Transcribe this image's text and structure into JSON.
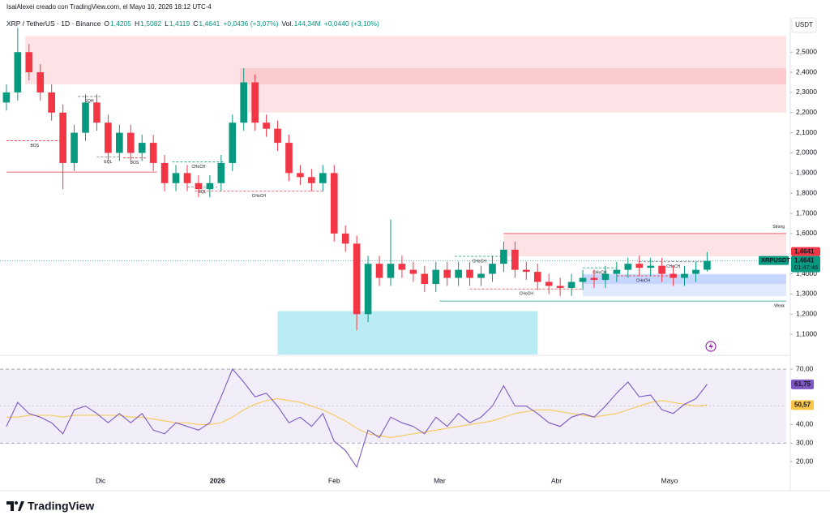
{
  "header": {
    "credit": "IsaiAlexei creado con TradingView.com, el Mayo 10, 2026 18:12 UTC-4",
    "symbol": "XRP / TetherUS · 1D · Binance",
    "ohlc": [
      {
        "key": "O",
        "value": "1,4205"
      },
      {
        "key": "H",
        "value": "1,5082"
      },
      {
        "key": "L",
        "value": "1,4119"
      },
      {
        "key": "C",
        "value": "1,4641"
      }
    ],
    "change": "+0,0436 (+3,07%)",
    "volume_key": "Vol.",
    "volume": "144,34M",
    "volume_change": "+0,0440 (+3,10%)",
    "currency": "USDT"
  },
  "chart_data": {
    "type": "candlestick",
    "up_color": "#089981",
    "down_color": "#f23645",
    "xlim": [
      -1.7,
      207
    ],
    "ylim": [
      1.0,
      2.67
    ],
    "xticks": [
      {
        "value": 25,
        "label": "Dic"
      },
      {
        "value": 56,
        "label": "2026"
      },
      {
        "value": 87,
        "label": "Feb"
      },
      {
        "value": 115,
        "label": "Mar"
      },
      {
        "value": 146,
        "label": "Abr"
      },
      {
        "value": 176,
        "label": "Mayo"
      }
    ],
    "yticks": [
      {
        "value": 1.1,
        "label": "1,1000"
      },
      {
        "value": 1.2,
        "label": "1,2000"
      },
      {
        "value": 1.3,
        "label": "1,3000"
      },
      {
        "value": 1.4,
        "label": "1,4000"
      },
      {
        "value": 1.6,
        "label": "1,6000"
      },
      {
        "value": 1.7,
        "label": "1,7000"
      },
      {
        "value": 1.8,
        "label": "1,8000"
      },
      {
        "value": 1.9,
        "label": "1,9000"
      },
      {
        "value": 2.0,
        "label": "2,0000"
      },
      {
        "value": 2.1,
        "label": "2,1000"
      },
      {
        "value": 2.2,
        "label": "2,2000"
      },
      {
        "value": 2.3,
        "label": "2,3000"
      },
      {
        "value": 2.4,
        "label": "2,4000"
      },
      {
        "value": 2.5,
        "label": "2,5000"
      }
    ],
    "x": [
      0,
      3,
      6,
      9,
      12,
      15,
      18,
      21,
      24,
      27,
      30,
      33,
      36,
      39,
      42,
      45,
      48,
      51,
      54,
      57,
      60,
      63,
      66,
      69,
      72,
      75,
      78,
      81,
      84,
      87,
      90,
      93,
      96,
      99,
      102,
      105,
      108,
      111,
      114,
      117,
      120,
      123,
      126,
      129,
      132,
      135,
      138,
      141,
      144,
      147,
      150,
      153,
      156,
      159,
      162,
      165,
      168,
      171,
      174,
      177,
      180,
      183,
      186
    ],
    "open": [
      2.25,
      2.3,
      2.5,
      2.4,
      2.3,
      2.2,
      1.95,
      2.1,
      2.25,
      2.15,
      2.0,
      2.1,
      2.0,
      2.05,
      1.95,
      1.85,
      1.9,
      1.85,
      1.82,
      1.85,
      1.95,
      2.15,
      2.35,
      2.15,
      2.12,
      2.05,
      1.9,
      1.88,
      1.85,
      1.9,
      1.6,
      1.55,
      1.2,
      1.45,
      1.38,
      1.45,
      1.42,
      1.4,
      1.35,
      1.42,
      1.38,
      1.42,
      1.38,
      1.4,
      1.45,
      1.52,
      1.42,
      1.41,
      1.36,
      1.34,
      1.33,
      1.36,
      1.38,
      1.37,
      1.4,
      1.42,
      1.45,
      1.43,
      1.44,
      1.4,
      1.38,
      1.4,
      1.4205
    ],
    "high": [
      2.34,
      2.62,
      2.54,
      2.44,
      2.34,
      2.24,
      2.14,
      2.29,
      2.29,
      2.19,
      2.14,
      2.14,
      2.09,
      2.09,
      1.99,
      1.94,
      1.94,
      1.89,
      1.89,
      1.99,
      2.19,
      2.42,
      2.39,
      2.19,
      2.16,
      2.09,
      1.94,
      1.92,
      1.94,
      1.94,
      1.64,
      1.59,
      1.49,
      1.49,
      1.67,
      1.49,
      1.46,
      1.44,
      1.46,
      1.46,
      1.46,
      1.46,
      1.44,
      1.49,
      1.56,
      1.56,
      1.46,
      1.45,
      1.4,
      1.38,
      1.4,
      1.42,
      1.42,
      1.44,
      1.46,
      1.48,
      1.49,
      1.48,
      1.48,
      1.44,
      1.44,
      1.46,
      1.5082
    ],
    "low": [
      2.21,
      2.26,
      2.36,
      2.26,
      2.16,
      1.82,
      1.91,
      2.06,
      2.11,
      1.96,
      1.96,
      1.96,
      1.96,
      1.91,
      1.81,
      1.81,
      1.81,
      1.78,
      1.78,
      1.81,
      1.91,
      2.11,
      2.11,
      2.08,
      2.01,
      1.86,
      1.84,
      1.81,
      1.81,
      1.56,
      1.51,
      1.12,
      1.16,
      1.34,
      1.34,
      1.38,
      1.36,
      1.31,
      1.31,
      1.34,
      1.34,
      1.34,
      1.34,
      1.36,
      1.41,
      1.38,
      1.37,
      1.32,
      1.3,
      1.29,
      1.29,
      1.32,
      1.33,
      1.33,
      1.36,
      1.38,
      1.39,
      1.39,
      1.36,
      1.34,
      1.34,
      1.36,
      1.4119
    ],
    "close": [
      2.3,
      2.5,
      2.4,
      2.3,
      2.2,
      1.95,
      2.1,
      2.25,
      2.15,
      2.0,
      2.1,
      2.0,
      2.05,
      1.95,
      1.85,
      1.9,
      1.85,
      1.82,
      1.85,
      1.95,
      2.15,
      2.35,
      2.15,
      2.12,
      2.05,
      1.9,
      1.88,
      1.85,
      1.9,
      1.6,
      1.55,
      1.2,
      1.45,
      1.38,
      1.45,
      1.42,
      1.4,
      1.35,
      1.42,
      1.38,
      1.42,
      1.38,
      1.4,
      1.45,
      1.52,
      1.42,
      1.41,
      1.36,
      1.34,
      1.33,
      1.36,
      1.38,
      1.37,
      1.4,
      1.42,
      1.45,
      1.43,
      1.44,
      1.4,
      1.38,
      1.4,
      1.42,
      1.4641
    ],
    "last_price": 1.4641,
    "last_price_label": "1,4641",
    "symbol_tag": "XRPUSDT",
    "countdown": "01:47:46",
    "zones": [
      {
        "top": 2.58,
        "bottom": 2.34,
        "from": 5,
        "to": 207,
        "color": "#f23645"
      },
      {
        "top": 2.42,
        "bottom": 2.2,
        "from": 62,
        "to": 207,
        "color": "#f23645"
      },
      {
        "top": 1.6,
        "bottom": 1.487,
        "from": 132,
        "to": 207,
        "color": "#f23645"
      },
      {
        "top": 1.215,
        "bottom": 1.0,
        "from": 72,
        "to": 141,
        "color": "#26c6da"
      },
      {
        "top": 1.4,
        "bottom": 1.29,
        "from": 153,
        "to": 207,
        "color": "#2962ff"
      },
      {
        "top": 1.397,
        "bottom": 1.35,
        "from": 153,
        "to": 207,
        "color": "#2962ff"
      }
    ],
    "levels": [
      {
        "label": "BOS",
        "value": 2.06,
        "from": 0,
        "to": 15,
        "color": "#f23645",
        "dash": true
      },
      {
        "value": 1.905,
        "from": 0,
        "to": 40,
        "color": "#f23645",
        "dash": false
      },
      {
        "label": "EQH",
        "value": 2.28,
        "from": 19,
        "to": 25,
        "color": "#787b86",
        "dash": true
      },
      {
        "label": "EQL",
        "value": 1.98,
        "from": 24,
        "to": 30,
        "color": "#787b86",
        "dash": true
      },
      {
        "label": "BOS",
        "value": 1.975,
        "from": 31,
        "to": 37,
        "color": "#f23645",
        "dash": true
      },
      {
        "label": "CHoCH",
        "value": 1.955,
        "from": 44,
        "to": 58,
        "color": "#089981",
        "dash": true
      },
      {
        "label": "EQL",
        "value": 1.83,
        "from": 48,
        "to": 56,
        "color": "#787b86",
        "dash": true
      },
      {
        "label": "CHoCH",
        "value": 1.81,
        "from": 50,
        "to": 84,
        "color": "#f23645",
        "dash": true
      },
      {
        "label": "CHoCH",
        "value": 1.487,
        "from": 119,
        "to": 132,
        "color": "#089981",
        "dash": true
      },
      {
        "label": "CHoCH",
        "value": 1.325,
        "from": 123,
        "to": 153,
        "color": "#f23645",
        "dash": true
      },
      {
        "label": "CHoCH",
        "value": 1.43,
        "from": 153,
        "to": 162,
        "color": "#089981",
        "dash": true
      },
      {
        "label": "CHoCH",
        "value": 1.39,
        "from": 162,
        "to": 176,
        "color": "#f23645",
        "dash": true
      },
      {
        "label": "CHoCH",
        "value": 1.46,
        "from": 168,
        "to": 186,
        "color": "#787b86",
        "dash": true
      },
      {
        "label": "Weak",
        "value": 1.265,
        "from": 115,
        "to": 207,
        "color": "#089981",
        "dash": false
      },
      {
        "label": "Strong",
        "value": 1.6,
        "from": 132,
        "to": 207,
        "color": "#f23645",
        "dash": false
      }
    ],
    "rsi": {
      "ylim": [
        10.8,
        76.6
      ],
      "band": [
        30,
        70
      ],
      "midline": 50,
      "yticks": [
        {
          "value": 20,
          "label": "20,00"
        },
        {
          "value": 30,
          "label": "30,00"
        },
        {
          "value": 40,
          "label": "40,00"
        },
        {
          "value": 70,
          "label": "70,00"
        }
      ],
      "series": [
        {
          "color": "#7e57c2",
          "values": [
            39,
            52,
            46,
            44,
            41,
            35,
            48,
            50,
            46,
            41,
            46,
            41,
            46,
            37,
            35,
            41,
            39,
            37,
            41,
            55,
            70,
            63,
            55,
            57,
            50,
            41,
            44,
            39,
            46,
            31,
            26,
            17,
            37,
            33,
            44,
            41,
            39,
            35,
            44,
            39,
            46,
            41,
            44,
            50,
            61,
            50,
            50,
            46,
            41,
            39,
            44,
            46,
            44,
            50,
            57,
            63,
            55,
            56,
            48,
            46,
            51,
            54,
            61.75
          ],
          "last_label": "61,75"
        },
        {
          "color": "#f7c548",
          "values": [
            44,
            44,
            45,
            45,
            45,
            44,
            45,
            45,
            45,
            45,
            45,
            44,
            44,
            43,
            42,
            41,
            41,
            40,
            40,
            41,
            44,
            48,
            51,
            53,
            54,
            53,
            52,
            50,
            48,
            45,
            42,
            38,
            35,
            34,
            33,
            34,
            35,
            36,
            37,
            38,
            39,
            40,
            41,
            42,
            44,
            46,
            47,
            48,
            48,
            47,
            46,
            45,
            44,
            45,
            46,
            48,
            50,
            52,
            53,
            52,
            51,
            50,
            50.57
          ],
          "last_label": "50,57"
        }
      ]
    }
  },
  "footer": {
    "brand": "TradingView"
  }
}
